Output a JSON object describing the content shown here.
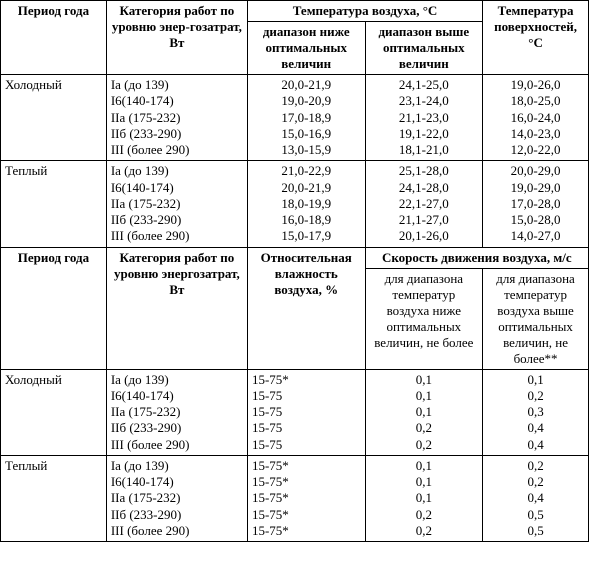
{
  "headers": {
    "period": "Период года",
    "category": "Категория работ по уровню энер-гозатрат, Вт",
    "category2": "Категория работ по уровню энергозатрат, Вт",
    "airTemp": "Температура воздуха, °С",
    "airTempLow": "диапазон ниже оптимальных величин",
    "airTempHigh": "диапазон выше оптимальных величин",
    "surfaceTemp": "Температура поверхностей, °С",
    "relHumidity": "Относительная влажность воздуха, %",
    "airSpeed": "Скорость движения воздуха, м/с",
    "airSpeedLow": "для диапазона температур воздуха ниже оптимальных величин, не более",
    "airSpeedHigh": "для диапазона температур воздуха выше оптимальных величин, не более**"
  },
  "periods": {
    "cold": "Холодный",
    "warm": "Теплый"
  },
  "categories": {
    "c0": "Iа (до 139)",
    "c1": "I6(140-174)",
    "c2": "IIа (175-232)",
    "c3": "IIб (233-290)",
    "c4": "III (более 290)"
  },
  "block1": {
    "cold": {
      "low": [
        "20,0-21,9",
        "19,0-20,9",
        "17,0-18,9",
        "15,0-16,9",
        "13,0-15,9"
      ],
      "high": [
        "24,1-25,0",
        "23,1-24,0",
        "21,1-23,0",
        "19,1-22,0",
        "18,1-21,0"
      ],
      "surf": [
        "19,0-26,0",
        "18,0-25,0",
        "16,0-24,0",
        "14,0-23,0",
        "12,0-22,0"
      ]
    },
    "warm": {
      "low": [
        "21,0-22,9",
        "20,0-21,9",
        "18,0-19,9",
        "16,0-18,9",
        "15,0-17,9"
      ],
      "high": [
        "25,1-28,0",
        "24,1-28,0",
        "22,1-27,0",
        "21,1-27,0",
        "20,1-26,0"
      ],
      "surf": [
        "20,0-29,0",
        "19,0-29,0",
        "17,0-28,0",
        "15,0-28,0",
        "14,0-27,0"
      ]
    }
  },
  "block2": {
    "cold": {
      "rh": [
        "15-75*",
        "15-75",
        "15-75",
        "15-75",
        "15-75"
      ],
      "vlow": [
        "0,1",
        "0,1",
        "0,1",
        "0,2",
        "0,2"
      ],
      "vhigh": [
        "0,1",
        "0,2",
        "0,3",
        "0,4",
        "0,4"
      ]
    },
    "warm": {
      "rh": [
        "15-75*",
        "15-75*",
        "15-75*",
        "15-75*",
        "15-75*"
      ],
      "vlow": [
        "0,1",
        "0,1",
        "0,1",
        "0,2",
        "0,2"
      ],
      "vhigh": [
        "0,2",
        "0,2",
        "0,4",
        "0,5",
        "0,5"
      ]
    }
  }
}
